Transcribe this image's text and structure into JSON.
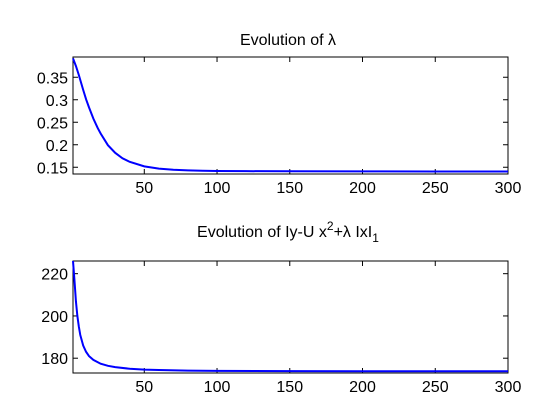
{
  "chart_data": [
    {
      "type": "line",
      "title": "Evolution of λ",
      "xlim": [
        1,
        300
      ],
      "ylim": [
        0.135,
        0.395
      ],
      "xticks": [
        50,
        100,
        150,
        200,
        250,
        300
      ],
      "yticks": [
        0.15,
        0.2,
        0.25,
        0.3,
        0.35
      ],
      "xtick_labels": [
        "50",
        "100",
        "150",
        "200",
        "250",
        "300"
      ],
      "ytick_labels": [
        "0.15",
        "0.2",
        "0.25",
        "0.3",
        "0.35"
      ],
      "color": "#0000ff",
      "series": [
        {
          "x": [
            1,
            3,
            5,
            8,
            10,
            12,
            15,
            18,
            20,
            25,
            30,
            35,
            40,
            50,
            60,
            70,
            80,
            90,
            100,
            120,
            150,
            200,
            250,
            300
          ],
          "y": [
            0.392,
            0.375,
            0.355,
            0.322,
            0.301,
            0.283,
            0.258,
            0.237,
            0.225,
            0.199,
            0.182,
            0.17,
            0.162,
            0.152,
            0.147,
            0.1445,
            0.143,
            0.1422,
            0.1418,
            0.1413,
            0.141,
            0.1408,
            0.1407,
            0.1407
          ]
        }
      ]
    },
    {
      "type": "line",
      "title": {
        "part1": "Evolution of Iy-U x",
        "sup": "2",
        "part2": "+λ IxI",
        "sub": "1"
      },
      "xlim": [
        1,
        300
      ],
      "ylim": [
        173,
        226
      ],
      "xticks": [
        50,
        100,
        150,
        200,
        250,
        300
      ],
      "yticks": [
        180,
        200,
        220
      ],
      "xtick_labels": [
        "50",
        "100",
        "150",
        "200",
        "250",
        "300"
      ],
      "ytick_labels": [
        "180",
        "200",
        "220"
      ],
      "color": "#0000ff",
      "series": [
        {
          "x": [
            1,
            2,
            3,
            4,
            5,
            6,
            8,
            10,
            12,
            15,
            20,
            25,
            30,
            40,
            50,
            60,
            80,
            100,
            150,
            200,
            250,
            300
          ],
          "y": [
            226,
            217,
            207,
            200,
            195,
            191,
            186,
            183,
            181,
            179.2,
            177.4,
            176.4,
            175.8,
            175.0,
            174.6,
            174.4,
            174.1,
            174.0,
            173.9,
            173.85,
            173.8,
            173.8
          ]
        }
      ]
    }
  ]
}
